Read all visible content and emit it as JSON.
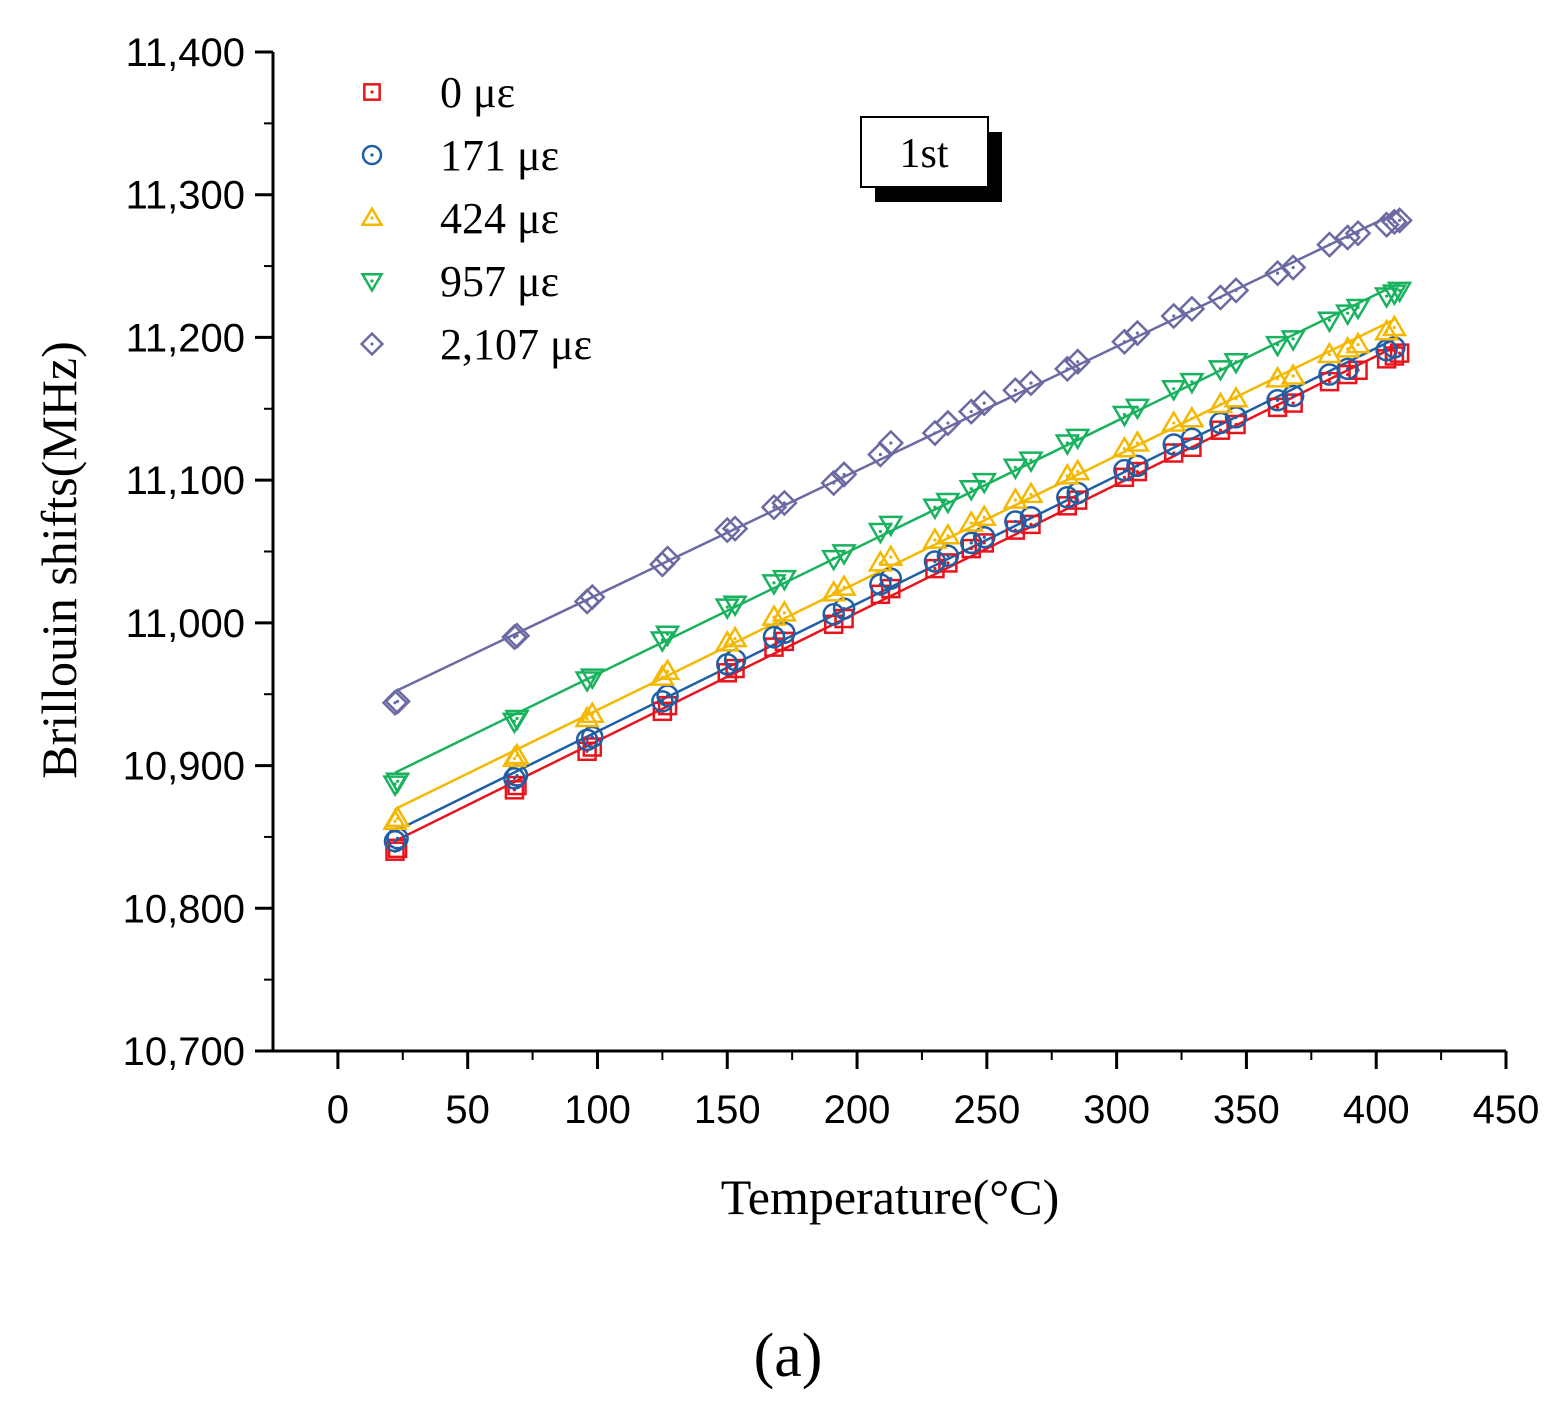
{
  "chart_data": {
    "type": "scatter",
    "title": "",
    "xlabel": "Temperature(°C)",
    "ylabel": "Brillouin shifts(MHz)",
    "xlim": [
      -25,
      450
    ],
    "ylim": [
      10700,
      11400
    ],
    "x_ticks": [
      0,
      50,
      100,
      150,
      200,
      250,
      300,
      350,
      400,
      450
    ],
    "y_ticks": [
      10700,
      10800,
      10900,
      11000,
      11100,
      11200,
      11300,
      11400
    ],
    "x_tick_labels": [
      "0",
      "50",
      "100",
      "150",
      "200",
      "250",
      "300",
      "350",
      "400",
      "450"
    ],
    "y_tick_labels": [
      "10,700",
      "10,800",
      "10,900",
      "11,000",
      "11,100",
      "11,200",
      "11,300",
      "11,400"
    ],
    "annotation": "1st",
    "caption": "(a)",
    "legend_position": "top-left",
    "series": [
      {
        "name": "0 με",
        "marker": "square",
        "color": "#e8141c",
        "x": [
          22,
          23,
          68,
          69,
          96,
          98,
          125,
          127,
          150,
          153,
          168,
          172,
          191,
          195,
          209,
          213,
          230,
          235,
          244,
          249,
          261,
          267,
          281,
          285,
          303,
          308,
          322,
          329,
          340,
          346,
          362,
          368,
          382,
          389,
          393,
          404,
          407,
          409
        ],
        "y": [
          10840,
          10842,
          10883,
          10886,
          10910,
          10913,
          10938,
          10942,
          10965,
          10968,
          10983,
          10987,
          10999,
          11003,
          11020,
          11024,
          11038,
          11042,
          11052,
          11056,
          11065,
          11069,
          11082,
          11086,
          11102,
          11106,
          11119,
          11123,
          11135,
          11139,
          11151,
          11154,
          11169,
          11174,
          11177,
          11185,
          11187,
          11189
        ]
      },
      {
        "name": "171 με",
        "marker": "circle",
        "color": "#1f5fa5",
        "x": [
          22,
          23,
          68,
          69,
          96,
          98,
          125,
          127,
          150,
          153,
          168,
          172,
          191,
          195,
          209,
          213,
          230,
          235,
          244,
          249,
          261,
          267,
          281,
          285,
          303,
          308,
          322,
          329,
          340,
          346,
          362,
          368,
          382,
          389,
          404,
          407
        ],
        "y": [
          10847,
          10849,
          10891,
          10893,
          10918,
          10920,
          10945,
          10949,
          10971,
          10974,
          10990,
          10993,
          11006,
          11010,
          11027,
          11031,
          11043,
          11047,
          11056,
          11060,
          11071,
          11074,
          11088,
          11091,
          11107,
          11110,
          11125,
          11129,
          11140,
          11144,
          11156,
          11159,
          11174,
          11178,
          11191,
          11193
        ]
      },
      {
        "name": "424 με",
        "marker": "triangle-up",
        "color": "#f5b800",
        "x": [
          22,
          23,
          68,
          69,
          96,
          98,
          125,
          127,
          150,
          153,
          168,
          172,
          191,
          195,
          209,
          213,
          230,
          235,
          244,
          249,
          261,
          267,
          281,
          285,
          303,
          308,
          322,
          329,
          340,
          346,
          362,
          368,
          382,
          389,
          393,
          404,
          407
        ],
        "y": [
          10861,
          10863,
          10905,
          10907,
          10933,
          10936,
          10962,
          10966,
          10986,
          10989,
          11004,
          11007,
          11021,
          11025,
          11042,
          11046,
          11058,
          11061,
          11070,
          11074,
          11086,
          11090,
          11103,
          11106,
          11122,
          11126,
          11140,
          11143,
          11153,
          11157,
          11171,
          11173,
          11188,
          11192,
          11195,
          11204,
          11207
        ]
      },
      {
        "name": "957 με",
        "marker": "triangle-down",
        "color": "#19b25e",
        "x": [
          22,
          23,
          68,
          69,
          96,
          98,
          125,
          127,
          150,
          153,
          168,
          172,
          191,
          195,
          209,
          213,
          230,
          235,
          244,
          249,
          261,
          267,
          281,
          285,
          303,
          308,
          322,
          329,
          340,
          346,
          362,
          368,
          382,
          389,
          393,
          404,
          407,
          409
        ],
        "y": [
          10887,
          10889,
          10931,
          10933,
          10960,
          10962,
          10988,
          10992,
          11011,
          11013,
          11028,
          11031,
          11045,
          11049,
          11064,
          11069,
          11081,
          11085,
          11094,
          11099,
          11109,
          11114,
          11126,
          11130,
          11146,
          11151,
          11164,
          11169,
          11178,
          11183,
          11195,
          11199,
          11212,
          11217,
          11221,
          11229,
          11231,
          11233
        ]
      },
      {
        "name": "2,107 με",
        "marker": "diamond",
        "color": "#6b6aa3",
        "x": [
          22,
          23,
          68,
          69,
          96,
          98,
          125,
          127,
          150,
          153,
          168,
          172,
          191,
          195,
          209,
          213,
          230,
          235,
          244,
          249,
          261,
          267,
          281,
          285,
          303,
          308,
          322,
          329,
          340,
          346,
          362,
          368,
          382,
          389,
          393,
          404,
          407,
          409
        ],
        "y": [
          10944,
          10945,
          10990,
          10991,
          11015,
          11018,
          11041,
          11045,
          11065,
          11066,
          11081,
          11084,
          11098,
          11104,
          11118,
          11126,
          11133,
          11140,
          11148,
          11154,
          11163,
          11168,
          11178,
          11183,
          11197,
          11203,
          11215,
          11220,
          11228,
          11233,
          11245,
          11249,
          11265,
          11270,
          11273,
          11279,
          11281,
          11282
        ]
      }
    ]
  }
}
